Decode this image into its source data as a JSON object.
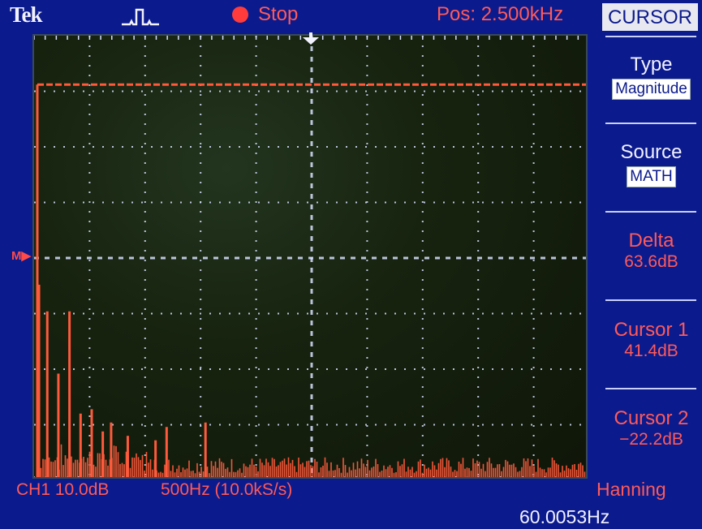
{
  "header": {
    "brand": "Tek",
    "run_state": "Stop",
    "position": "Pos: 2.500kHz"
  },
  "menu": {
    "title": "CURSOR",
    "items": [
      {
        "label": "Type",
        "value": "Magnitude",
        "boxed": true
      },
      {
        "label": "Source",
        "value": "MATH",
        "boxed": true
      },
      {
        "label": "Delta",
        "value": "63.6dB"
      },
      {
        "label": "Cursor 1",
        "value": "41.4dB"
      },
      {
        "label": "Cursor 2",
        "value": "−22.2dB"
      }
    ]
  },
  "footer": {
    "channel_scale": "CH1 10.0dB",
    "timebase": "500Hz (10.0kS/s)",
    "window": "Hanning",
    "frequency": "60.0053Hz"
  },
  "markers": {
    "reference": "M"
  },
  "colors": {
    "bezel": "#0b1a8c",
    "trace": "#ff5a3c",
    "grid": "#d8e0ff",
    "label": "#ff5a5a"
  },
  "trace": {
    "spikes": [
      {
        "x": 0,
        "level": 0.44
      },
      {
        "x": 0.15,
        "level": 0.38
      },
      {
        "x": 0.35,
        "level": 0.24
      },
      {
        "x": 0.55,
        "level": 0.38
      },
      {
        "x": 0.75,
        "level": 0.15
      },
      {
        "x": 0.95,
        "level": 0.16
      },
      {
        "x": 1.15,
        "level": 0.11
      },
      {
        "x": 1.3,
        "level": 0.13
      },
      {
        "x": 1.6,
        "level": 0.1
      },
      {
        "x": 2.1,
        "level": 0.09
      },
      {
        "x": 2.3,
        "level": 0.12
      },
      {
        "x": 3.0,
        "level": 0.13
      }
    ],
    "noise_level": 0.04,
    "cursor1_level": 0.89
  }
}
